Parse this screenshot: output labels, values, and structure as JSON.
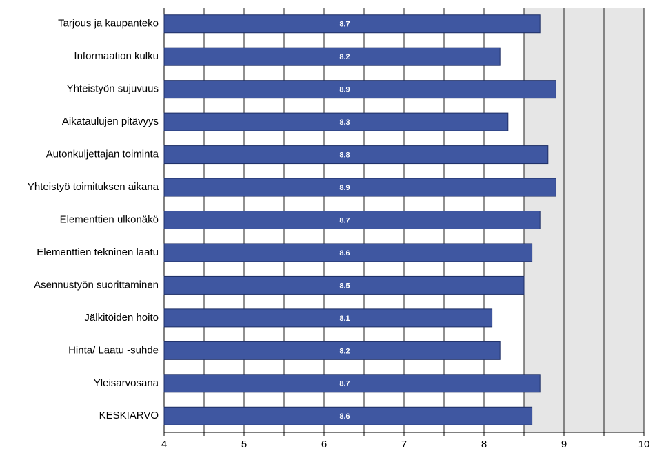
{
  "chart_data": {
    "type": "hbar",
    "categories": [
      "Tarjous ja kaupanteko",
      "Informaation kulku",
      "Yhteistyön sujuvuus",
      "Aikataulujen pitävyys",
      "Autonkuljettajan toiminta",
      "Yhteistyö toimituksen aikana",
      "Elementtien ulkonäkö",
      "Elementtien tekninen laatu",
      "Asennustyön suorittaminen",
      "Jälkitöiden hoito",
      "Hinta/ Laatu -suhde",
      "Yleisarvosana",
      "KESKIARVO"
    ],
    "values": [
      8.7,
      8.2,
      8.9,
      8.3,
      8.8,
      8.9,
      8.7,
      8.6,
      8.5,
      8.1,
      8.2,
      8.7,
      8.6
    ],
    "color": "#3f57a1",
    "xlim": [
      4,
      10
    ],
    "xticks": [
      4,
      5,
      6,
      7,
      8,
      9,
      10
    ],
    "x_minor_ticks": [
      4.5,
      5.5,
      6.5,
      7.5,
      8.5,
      9.5
    ],
    "highlight_xlim": [
      8.5,
      10
    ],
    "highlight_color": "#e6e6e6",
    "grid": true
  }
}
